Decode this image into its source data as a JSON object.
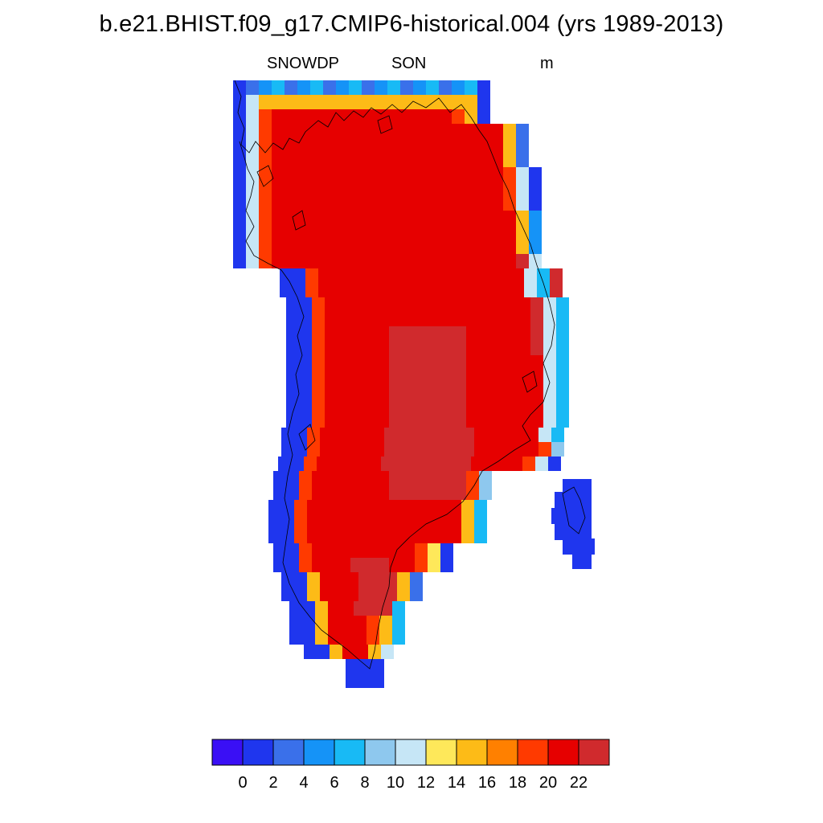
{
  "title": "b.e21.BHIST.f09_g17.CMIP6-historical.004 (yrs 1989-2013)",
  "subtitle": {
    "variable": "SNOWDP",
    "season": "SON",
    "units": "m"
  },
  "colorbar": {
    "colors": [
      "#3a0ff5",
      "#1f36ee",
      "#3a70ea",
      "#1593f7",
      "#18baf5",
      "#8ec8ee",
      "#c6e6f6",
      "#fee85a",
      "#fdbb17",
      "#ff8000",
      "#ff3a00",
      "#e60000",
      "#d02a2d"
    ],
    "tick_labels": [
      "0",
      "2",
      "4",
      "6",
      "8",
      "10",
      "12",
      "14",
      "16",
      "18",
      "20",
      "22"
    ]
  },
  "map": {
    "region": "Greenland",
    "shading": "SNOWDP depth by grid cell",
    "interior": "20-22+ m over ice sheet",
    "coast": "0-2 m along west and southeast margins"
  }
}
